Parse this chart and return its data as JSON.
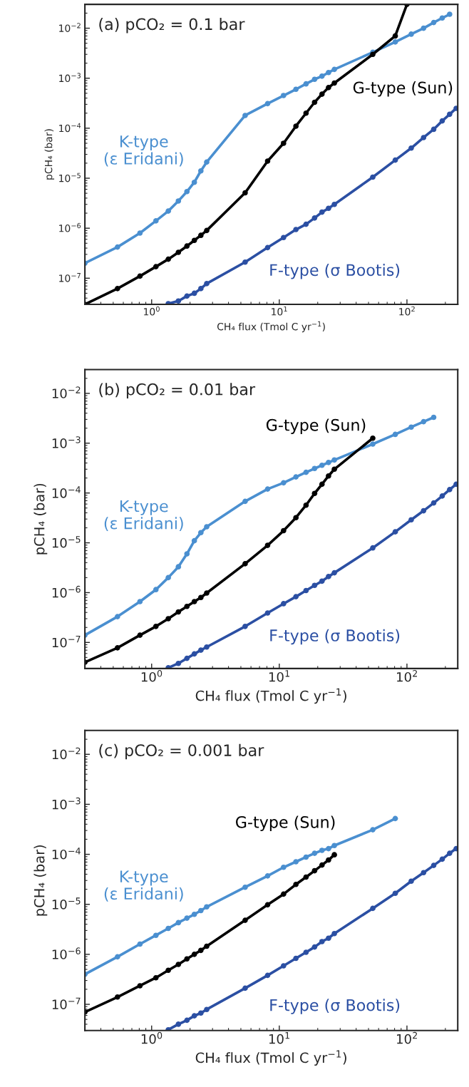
{
  "chart_data": [
    {
      "type": "line",
      "title": "(a) pCO₂ = 0.1 bar",
      "xlabel": "CH₄ flux (Tmol C yr$^{−1}$)",
      "ylabel": "pCH₄ (bar)",
      "log": "xy",
      "xlim": [
        0.3,
        250
      ],
      "ylim": [
        3e-08,
        0.03
      ],
      "xticks": [
        {
          "value": 1,
          "label": "10$^{0}$"
        },
        {
          "value": 10,
          "label": "10$^{1}$"
        },
        {
          "value": 100,
          "label": "10$^{2}$"
        }
      ],
      "yticks": [
        {
          "value": 1e-07,
          "label": "10$^{−7}$"
        },
        {
          "value": 1e-06,
          "label": "10$^{−6}$"
        },
        {
          "value": 1e-05,
          "label": "10$^{−5}$"
        },
        {
          "value": 0.0001,
          "label": "10$^{−4}$"
        },
        {
          "value": 0.001,
          "label": "10$^{−3}$"
        },
        {
          "value": 0.01,
          "label": "10$^{−2}$"
        }
      ],
      "grid": false,
      "legend": false,
      "marker": "circle",
      "line_style": "solid",
      "series": [
        {
          "name": "K-type\n(ε Eridani)",
          "color": "#4a8fd0",
          "x": [
            0.3,
            0.54,
            0.81,
            1.08,
            1.35,
            1.62,
            1.89,
            2.16,
            2.43,
            2.7,
            5.4,
            8.1,
            10.8,
            13.5,
            16.2,
            18.9,
            21.6,
            24.3,
            27,
            54,
            81,
            108,
            135,
            162,
            189,
            216
          ],
          "values": [
            2e-07,
            4.2e-07,
            8e-07,
            1.4e-06,
            2.2e-06,
            3.5e-06,
            5.4e-06,
            8.3e-06,
            1.4e-05,
            2.1e-05,
            0.00018,
            0.00031,
            0.00045,
            0.0006,
            0.00077,
            0.00095,
            0.0011,
            0.0013,
            0.0015,
            0.0033,
            0.0053,
            0.0076,
            0.01,
            0.013,
            0.016,
            0.019
          ]
        },
        {
          "name": "G-type (Sun)",
          "color": "#000000",
          "x": [
            0.3,
            0.54,
            0.81,
            1.08,
            1.35,
            1.62,
            1.89,
            2.16,
            2.43,
            2.7,
            5.4,
            8.1,
            10.8,
            13.5,
            16.2,
            18.9,
            21.6,
            24.3,
            27,
            54,
            81,
            100
          ],
          "values": [
            3e-08,
            6.2e-08,
            1.1e-07,
            1.7e-07,
            2.4e-07,
            3.3e-07,
            4.4e-07,
            5.7e-07,
            7.2e-07,
            9e-07,
            5.1e-06,
            2.2e-05,
            5e-05,
            0.00011,
            0.0002,
            0.00033,
            0.00048,
            0.00065,
            0.0008,
            0.003,
            0.007,
            0.03
          ]
        },
        {
          "name": "F-type (σ Bootis)",
          "color": "#2b4fa3",
          "x": [
            1.35,
            1.62,
            1.89,
            2.16,
            2.43,
            2.7,
            5.4,
            8.1,
            10.8,
            13.5,
            16.2,
            18.9,
            21.6,
            24.3,
            27,
            54,
            81,
            108,
            135,
            162,
            189,
            216,
            243
          ],
          "values": [
            3.1e-08,
            3.5e-08,
            4.4e-08,
            5e-08,
            6.2e-08,
            7.8e-08,
            2.1e-07,
            4.1e-07,
            6.5e-07,
            9.4e-07,
            1.2e-06,
            1.6e-06,
            2.1e-06,
            2.5e-06,
            3e-06,
            1.05e-05,
            2.3e-05,
            4e-05,
            6.5e-05,
            9.5e-05,
            0.00014,
            0.00019,
            0.00025
          ]
        }
      ]
    },
    {
      "type": "line",
      "title": "(b) pCO₂ = 0.01 bar",
      "xlabel": "CH₄ flux (Tmol C yr$^{−1}$)",
      "ylabel": "pCH₄ (bar)",
      "log": "xy",
      "xlim": [
        0.3,
        250
      ],
      "ylim": [
        3e-08,
        0.03
      ],
      "xticks": [
        {
          "value": 1,
          "label": "10$^{0}$"
        },
        {
          "value": 10,
          "label": "10$^{1}$"
        },
        {
          "value": 100,
          "label": "10$^{2}$"
        }
      ],
      "yticks": [
        {
          "value": 1e-07,
          "label": "10$^{−7}$"
        },
        {
          "value": 1e-06,
          "label": "10$^{−6}$"
        },
        {
          "value": 1e-05,
          "label": "10$^{−5}$"
        },
        {
          "value": 0.0001,
          "label": "10$^{−4}$"
        },
        {
          "value": 0.001,
          "label": "10$^{−3}$"
        },
        {
          "value": 0.01,
          "label": "10$^{−2}$"
        }
      ],
      "grid": false,
      "legend": false,
      "marker": "circle",
      "line_style": "solid",
      "series": [
        {
          "name": "K-type\n(ε Eridani)",
          "color": "#4a8fd0",
          "x": [
            0.3,
            0.54,
            0.81,
            1.08,
            1.35,
            1.62,
            1.89,
            2.16,
            2.43,
            2.7,
            5.4,
            8.1,
            10.8,
            13.5,
            16.2,
            18.9,
            21.6,
            24.3,
            27,
            54,
            81,
            108,
            135,
            162
          ],
          "values": [
            1.4e-07,
            3.3e-07,
            6.6e-07,
            1.15e-06,
            2e-06,
            3.3e-06,
            6e-06,
            1.1e-05,
            1.6e-05,
            2.1e-05,
            6.8e-05,
            0.00012,
            0.00016,
            0.00021,
            0.00026,
            0.00031,
            0.00036,
            0.00041,
            0.00046,
            0.00096,
            0.0015,
            0.0021,
            0.0027,
            0.0033
          ]
        },
        {
          "name": "G-type (Sun)",
          "color": "#000000",
          "x": [
            0.3,
            0.54,
            0.81,
            1.08,
            1.35,
            1.62,
            1.89,
            2.16,
            2.43,
            2.7,
            5.4,
            8.1,
            10.8,
            13.5,
            16.2,
            18.9,
            21.6,
            24.3,
            27,
            54
          ],
          "values": [
            4e-08,
            7.8e-08,
            1.4e-07,
            2.1e-07,
            3e-07,
            4.1e-07,
            5.3e-07,
            6.6e-07,
            8e-07,
            9.8e-07,
            3.8e-06,
            8.9e-06,
            1.75e-05,
            3.2e-05,
            5.7e-05,
            9.8e-05,
            0.00015,
            0.00022,
            0.0003,
            0.00126
          ]
        },
        {
          "name": "F-type (σ Bootis)",
          "color": "#2b4fa3",
          "x": [
            1.35,
            1.62,
            1.89,
            2.16,
            2.43,
            2.7,
            5.4,
            8.1,
            10.8,
            13.5,
            16.2,
            18.9,
            21.6,
            24.3,
            27,
            54,
            81,
            108,
            135,
            162,
            189,
            216,
            243
          ],
          "values": [
            3.1e-08,
            3.8e-08,
            4.8e-08,
            5.9e-08,
            7e-08,
            8.1e-08,
            2.1e-07,
            3.9e-07,
            6e-07,
            8.3e-07,
            1.1e-06,
            1.4e-06,
            1.7e-06,
            2.1e-06,
            2.5e-06,
            7.9e-06,
            1.66e-05,
            2.9e-05,
            4.4e-05,
            6.3e-05,
            8.7e-05,
            0.000117,
            0.00015
          ]
        }
      ]
    },
    {
      "type": "line",
      "title": "(c) pCO₂ = 0.001 bar",
      "xlabel": "CH₄ flux (Tmol C yr$^{−1}$)",
      "ylabel": "pCH₄ (bar)",
      "log": "xy",
      "xlim": [
        0.3,
        250
      ],
      "ylim": [
        3e-08,
        0.03
      ],
      "xticks": [
        {
          "value": 1,
          "label": "10$^{0}$"
        },
        {
          "value": 10,
          "label": "10$^{1}$"
        },
        {
          "value": 100,
          "label": "10$^{2}$"
        }
      ],
      "yticks": [
        {
          "value": 1e-07,
          "label": "10$^{−7}$"
        },
        {
          "value": 1e-06,
          "label": "10$^{−6}$"
        },
        {
          "value": 1e-05,
          "label": "10$^{−5}$"
        },
        {
          "value": 0.0001,
          "label": "10$^{−4}$"
        },
        {
          "value": 0.001,
          "label": "10$^{−3}$"
        },
        {
          "value": 0.01,
          "label": "10$^{−2}$"
        }
      ],
      "grid": false,
      "legend": false,
      "marker": "circle",
      "line_style": "solid",
      "series": [
        {
          "name": "K-type\n(ε Eridani)",
          "color": "#4a8fd0",
          "x": [
            0.3,
            0.54,
            0.81,
            1.08,
            1.35,
            1.62,
            1.89,
            2.16,
            2.43,
            2.7,
            5.4,
            8.1,
            10.8,
            13.5,
            16.2,
            18.9,
            21.6,
            24.3,
            27,
            54,
            81
          ],
          "values": [
            4e-07,
            8.9e-07,
            1.6e-06,
            2.4e-06,
            3.3e-06,
            4.3e-06,
            5.3e-06,
            6.3e-06,
            7.5e-06,
            8.9e-06,
            2.2e-05,
            3.7e-05,
            5.5e-05,
            7.1e-05,
            8.8e-05,
            0.000105,
            0.00012,
            0.00013,
            0.00015,
            0.00031,
            0.00052
          ]
        },
        {
          "name": "G-type (Sun)",
          "color": "#000000",
          "x": [
            0.3,
            0.54,
            0.81,
            1.08,
            1.35,
            1.62,
            1.89,
            2.16,
            2.43,
            2.7,
            5.4,
            8.1,
            10.8,
            13.5,
            16.2,
            18.9,
            21.6,
            24.3,
            27
          ],
          "values": [
            7e-08,
            1.4e-07,
            2.35e-07,
            3.4e-07,
            4.8e-07,
            6.3e-07,
            8.1e-07,
            1e-06,
            1.2e-06,
            1.45e-06,
            4.8e-06,
            9.8e-06,
            1.6e-05,
            2.5e-05,
            3.5e-05,
            4.7e-05,
            6.1e-05,
            7.7e-05,
            9.8e-05
          ]
        },
        {
          "name": "F-type (σ Bootis)",
          "color": "#2b4fa3",
          "x": [
            1.35,
            1.62,
            1.89,
            2.16,
            2.43,
            2.7,
            5.4,
            8.1,
            10.8,
            13.5,
            16.2,
            18.9,
            21.6,
            24.3,
            27,
            54,
            81,
            108,
            135,
            162,
            189,
            216,
            243
          ],
          "values": [
            3.1e-08,
            4e-08,
            4.8e-08,
            5.9e-08,
            6.7e-08,
            7.9e-08,
            2.1e-07,
            3.8e-07,
            5.9e-07,
            8.3e-07,
            1.1e-06,
            1.4e-06,
            1.8e-06,
            2.1e-06,
            2.6e-06,
            8.3e-06,
            1.66e-05,
            2.9e-05,
            4.3e-05,
            6e-05,
            8e-05,
            0.000105,
            0.00013
          ]
        }
      ]
    }
  ]
}
